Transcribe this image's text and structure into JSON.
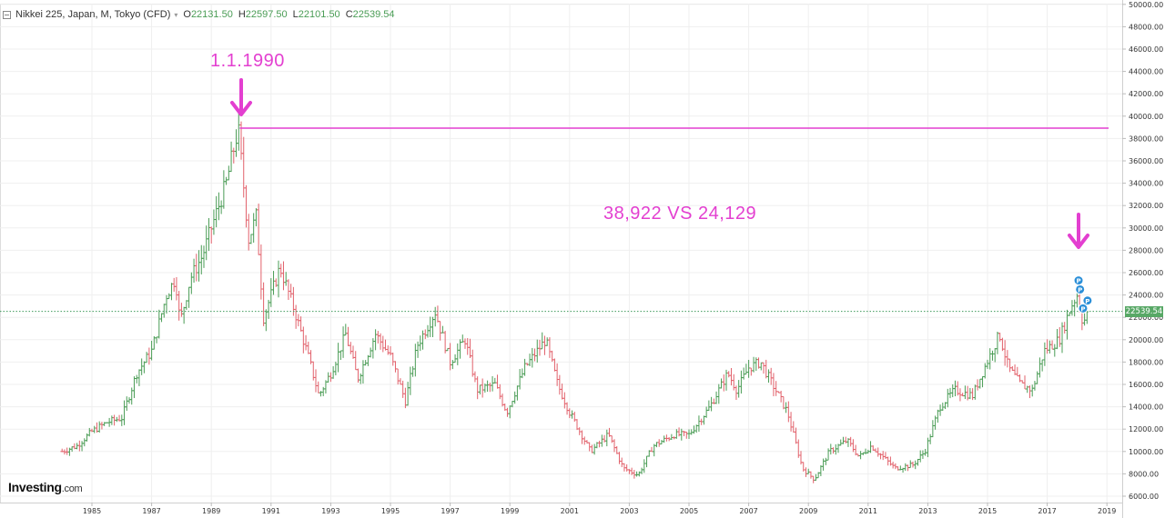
{
  "legend": {
    "name": "Nikkei 225, Japan, M, Tokyo (CFD)",
    "open": {
      "label": "O",
      "value": "22131.50"
    },
    "high": {
      "label": "H",
      "value": "22597.50"
    },
    "low": {
      "label": "L",
      "value": "22101.50"
    },
    "close": {
      "label": "C",
      "value": "22539.54"
    }
  },
  "logo": {
    "main": "Investing",
    "suffix": ".com"
  },
  "annotations": {
    "peak_date": "1.1.1990",
    "comparison": "38,922 VS 24,129"
  },
  "last_price_badge": "22539.54",
  "colors": {
    "up": "#4a9c55",
    "down": "#e2616b",
    "annotation": "#e33fd0",
    "last_price_line": "#3f9a5c",
    "signal_marker": "#2b8fd8"
  },
  "icons": [
    "dropdown-caret-icon",
    "arrow-down-icon",
    "signal-p-icon"
  ],
  "chart_data": {
    "type": "candlestick",
    "interval": "monthly",
    "x_ticks": [
      "1985",
      "1987",
      "1989",
      "1991",
      "1993",
      "1995",
      "1997",
      "1999",
      "2001",
      "2003",
      "2005",
      "2007",
      "2009",
      "2011",
      "2013",
      "2015",
      "2017",
      "2019"
    ],
    "y_ticks": [
      "6000.00",
      "8000.00",
      "10000.00",
      "12000.00",
      "14000.00",
      "16000.00",
      "18000.00",
      "20000.00",
      "22000.00",
      "24000.00",
      "26000.00",
      "28000.00",
      "30000.00",
      "32000.00",
      "34000.00",
      "36000.00",
      "38000.00",
      "40000.00",
      "42000.00",
      "44000.00",
      "46000.00",
      "48000.00",
      "50000.00"
    ],
    "ylim": [
      5000,
      50000
    ],
    "xlim": [
      1983.0,
      2019.6
    ],
    "horizontal_line": 38922,
    "last_close": 22539.54,
    "closes": [
      {
        "t": 1984.0,
        "v": 10000
      },
      {
        "t": 1984.5,
        "v": 10500
      },
      {
        "t": 1985.0,
        "v": 11800
      },
      {
        "t": 1985.5,
        "v": 12600
      },
      {
        "t": 1986.0,
        "v": 13000
      },
      {
        "t": 1986.5,
        "v": 17000
      },
      {
        "t": 1987.0,
        "v": 19000
      },
      {
        "t": 1987.5,
        "v": 24000
      },
      {
        "t": 1987.8,
        "v": 25500
      },
      {
        "t": 1987.95,
        "v": 21500
      },
      {
        "t": 1988.3,
        "v": 25500
      },
      {
        "t": 1988.7,
        "v": 27500
      },
      {
        "t": 1989.0,
        "v": 30000
      },
      {
        "t": 1989.5,
        "v": 34000
      },
      {
        "t": 1989.9,
        "v": 38900
      },
      {
        "t": 1990.25,
        "v": 29000
      },
      {
        "t": 1990.5,
        "v": 31000
      },
      {
        "t": 1990.75,
        "v": 22000
      },
      {
        "t": 1991.0,
        "v": 24000
      },
      {
        "t": 1991.3,
        "v": 26500
      },
      {
        "t": 1991.8,
        "v": 22500
      },
      {
        "t": 1992.3,
        "v": 18000
      },
      {
        "t": 1992.6,
        "v": 15000
      },
      {
        "t": 1993.0,
        "v": 17000
      },
      {
        "t": 1993.5,
        "v": 20500
      },
      {
        "t": 1993.9,
        "v": 16500
      },
      {
        "t": 1994.5,
        "v": 20500
      },
      {
        "t": 1995.0,
        "v": 18500
      },
      {
        "t": 1995.5,
        "v": 14500
      },
      {
        "t": 1995.9,
        "v": 19500
      },
      {
        "t": 1996.5,
        "v": 22500
      },
      {
        "t": 1997.0,
        "v": 18000
      },
      {
        "t": 1997.5,
        "v": 20000
      },
      {
        "t": 1997.9,
        "v": 15500
      },
      {
        "t": 1998.5,
        "v": 16000
      },
      {
        "t": 1998.9,
        "v": 13500
      },
      {
        "t": 1999.5,
        "v": 17500
      },
      {
        "t": 2000.2,
        "v": 20000
      },
      {
        "t": 2000.6,
        "v": 16000
      },
      {
        "t": 2001.0,
        "v": 13500
      },
      {
        "t": 2001.7,
        "v": 10000
      },
      {
        "t": 2002.3,
        "v": 11500
      },
      {
        "t": 2002.8,
        "v": 8500
      },
      {
        "t": 2003.3,
        "v": 7900
      },
      {
        "t": 2003.8,
        "v": 10500
      },
      {
        "t": 2004.5,
        "v": 11500
      },
      {
        "t": 2005.0,
        "v": 11500
      },
      {
        "t": 2005.7,
        "v": 14000
      },
      {
        "t": 2006.3,
        "v": 17000
      },
      {
        "t": 2006.6,
        "v": 15500
      },
      {
        "t": 2007.0,
        "v": 17500
      },
      {
        "t": 2007.4,
        "v": 18000
      },
      {
        "t": 2007.8,
        "v": 16000
      },
      {
        "t": 2008.3,
        "v": 13500
      },
      {
        "t": 2008.8,
        "v": 8500
      },
      {
        "t": 2009.2,
        "v": 7500
      },
      {
        "t": 2009.7,
        "v": 10000
      },
      {
        "t": 2010.3,
        "v": 11000
      },
      {
        "t": 2010.7,
        "v": 9500
      },
      {
        "t": 2011.1,
        "v": 10500
      },
      {
        "t": 2011.5,
        "v": 9500
      },
      {
        "t": 2011.9,
        "v": 8500
      },
      {
        "t": 2012.5,
        "v": 8800
      },
      {
        "t": 2012.9,
        "v": 10000
      },
      {
        "t": 2013.4,
        "v": 14000
      },
      {
        "t": 2013.9,
        "v": 15500
      },
      {
        "t": 2014.5,
        "v": 15000
      },
      {
        "t": 2014.9,
        "v": 17500
      },
      {
        "t": 2015.4,
        "v": 20500
      },
      {
        "t": 2015.7,
        "v": 17500
      },
      {
        "t": 2016.1,
        "v": 16000
      },
      {
        "t": 2016.5,
        "v": 15500
      },
      {
        "t": 2016.9,
        "v": 19000
      },
      {
        "t": 2017.4,
        "v": 20000
      },
      {
        "t": 2017.8,
        "v": 23000
      },
      {
        "t": 2018.0,
        "v": 24000
      },
      {
        "t": 2018.2,
        "v": 21500
      },
      {
        "t": 2018.4,
        "v": 22500
      }
    ],
    "signal_markers": [
      {
        "t": 2018.05,
        "v": 25300,
        "label": "P"
      },
      {
        "t": 2018.1,
        "v": 24500,
        "label": "P"
      },
      {
        "t": 2018.35,
        "v": 23500,
        "label": "P"
      },
      {
        "t": 2018.2,
        "v": 22800,
        "label": "P"
      }
    ]
  }
}
